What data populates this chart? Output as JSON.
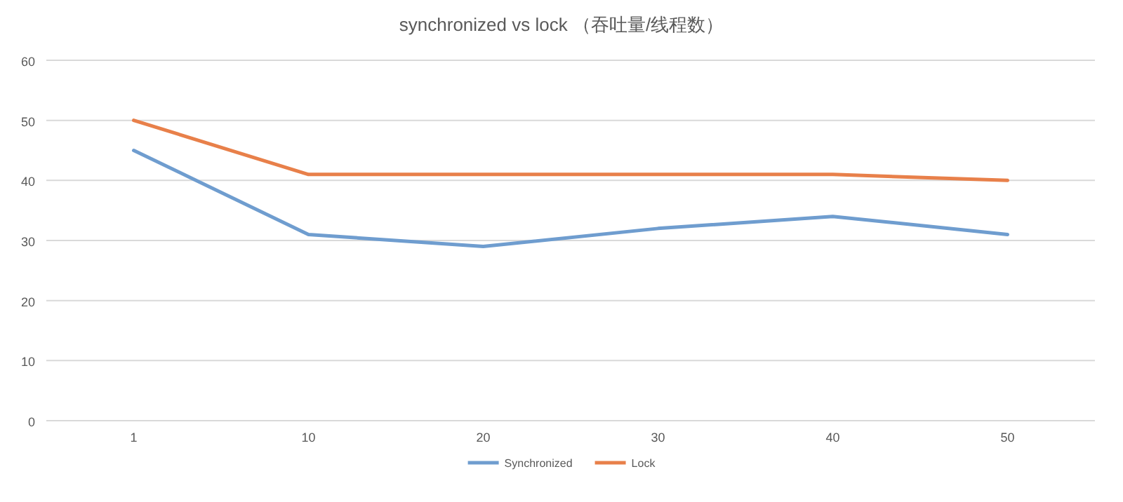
{
  "chart_data": {
    "type": "line",
    "title": "synchronized vs lock （吞吐量/线程数）",
    "categories": [
      "1",
      "10",
      "20",
      "30",
      "40",
      "50"
    ],
    "series": [
      {
        "name": "Synchronized",
        "color": "#6f9dcf",
        "values": [
          45,
          31,
          29,
          32,
          34,
          31
        ]
      },
      {
        "name": "Lock",
        "color": "#e8804a",
        "values": [
          50,
          41,
          41,
          41,
          41,
          40
        ]
      }
    ],
    "ylim": [
      0,
      60
    ],
    "yticks": [
      0,
      10,
      20,
      30,
      40,
      50,
      60
    ],
    "grid": "y",
    "legend": "bottom",
    "marker": "none",
    "line_style": "solid"
  }
}
